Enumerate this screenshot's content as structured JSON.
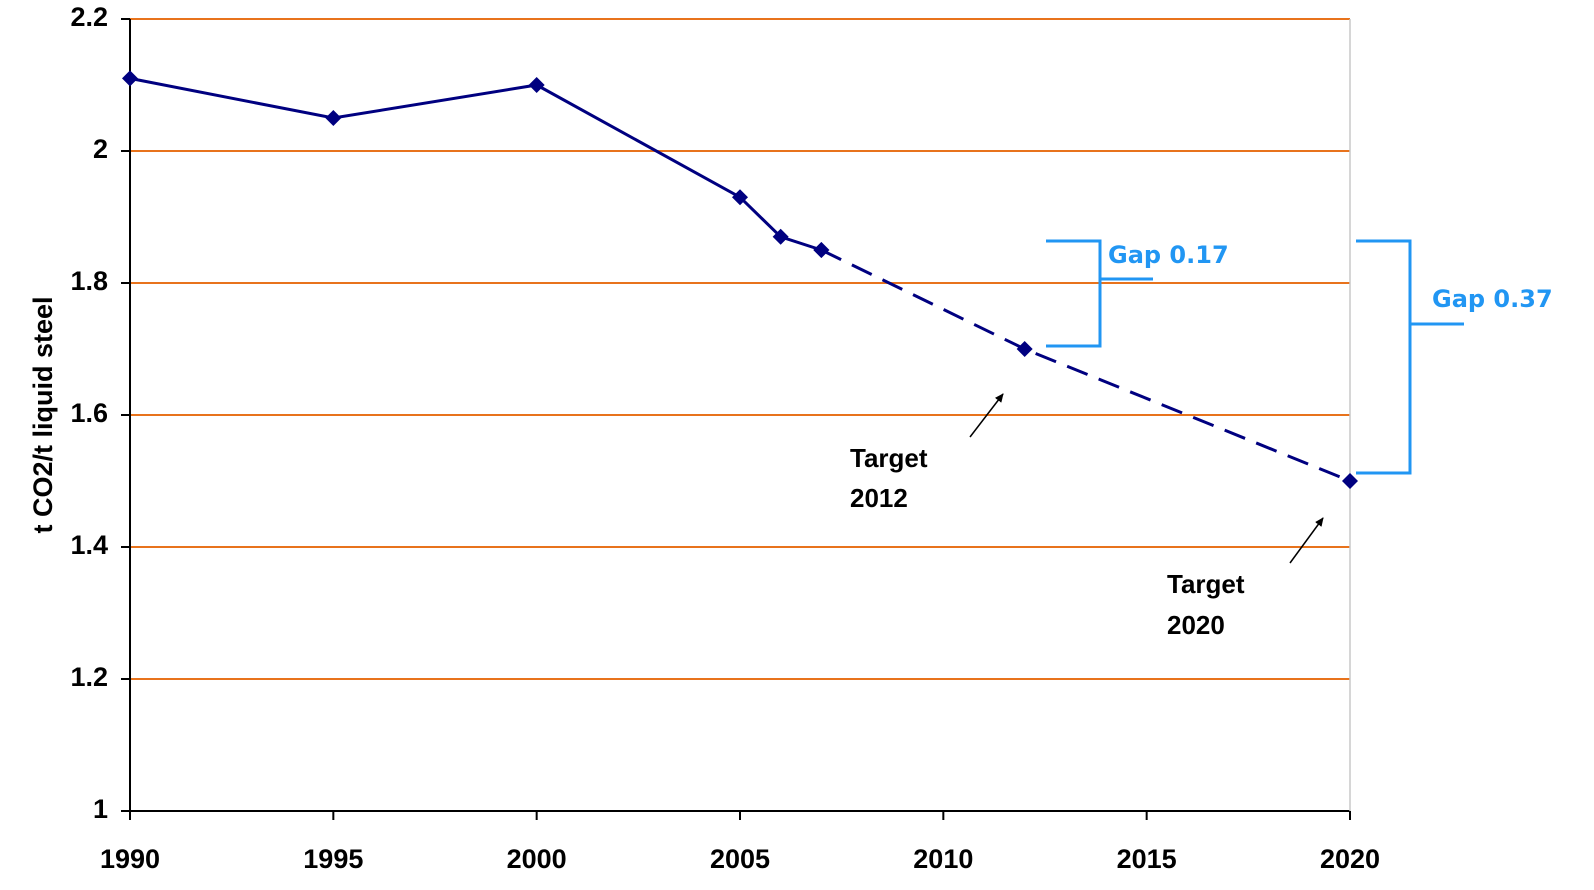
{
  "chart_data": {
    "type": "line",
    "y_label": "t CO2/t liquid steel",
    "x": [
      1990,
      1995,
      2000,
      2005,
      2006,
      2007,
      2012,
      2020
    ],
    "series": [
      {
        "color": "#000080",
        "line_style": "solid",
        "values": [
          2.11,
          2.05,
          2.1,
          1.93,
          1.87,
          1.85,
          null,
          null
        ]
      },
      {
        "color": "#000080",
        "line_style": "dashed",
        "values": [
          null,
          null,
          null,
          null,
          null,
          1.85,
          1.7,
          1.5
        ]
      }
    ],
    "xlim": [
      1990,
      2020
    ],
    "xticks": [
      1990,
      1995,
      2000,
      2005,
      2010,
      2015,
      2020
    ],
    "ylim": [
      1,
      2.2
    ],
    "yticks": [
      1,
      1.2,
      1.4,
      1.6,
      1.8,
      2,
      2.2
    ],
    "grid": true,
    "grid_color": "#e8731c",
    "annotations": [
      {
        "lines": [
          "Target",
          "2012"
        ]
      },
      {
        "lines": [
          "Target",
          "2020"
        ]
      },
      {
        "text": "Gap 0.17"
      },
      {
        "text": "Gap 0.37"
      }
    ]
  }
}
